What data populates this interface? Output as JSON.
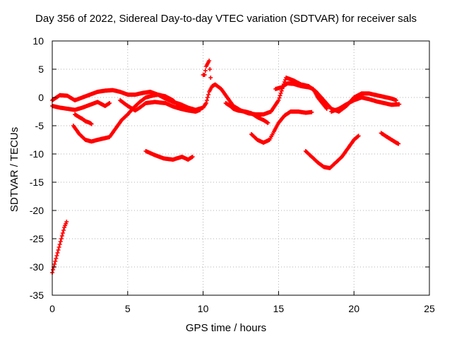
{
  "chart_data": {
    "type": "scatter",
    "title": "Day 356 of 2022, Sidereal Day-to-day VTEC variation (SDTVAR) for receiver sals",
    "xlabel": "GPS time / hours",
    "ylabel": "SDTVAR / TECUs",
    "xlim": [
      0,
      25
    ],
    "ylim": [
      -35,
      10
    ],
    "xticks": [
      0,
      5,
      10,
      15,
      20,
      25
    ],
    "yticks": [
      -35,
      -30,
      -25,
      -20,
      -15,
      -10,
      -5,
      0,
      5,
      10
    ],
    "grid": true,
    "marker": "+",
    "color": "#ff0000",
    "series": [
      {
        "name": "track-1",
        "points": [
          [
            0.0,
            -31.0
          ],
          [
            0.2,
            -29.0
          ],
          [
            0.4,
            -27.0
          ],
          [
            0.6,
            -25.0
          ],
          [
            0.8,
            -23.0
          ],
          [
            0.95,
            -22.0
          ]
        ]
      },
      {
        "name": "track-2",
        "points": [
          [
            0.0,
            -0.5
          ],
          [
            0.5,
            0.4
          ],
          [
            1.0,
            0.3
          ],
          [
            1.5,
            -0.5
          ],
          [
            2.0,
            0.0
          ],
          [
            2.5,
            0.5
          ],
          [
            3.0,
            1.0
          ],
          [
            3.5,
            1.2
          ],
          [
            4.0,
            1.3
          ],
          [
            4.5,
            1.0
          ],
          [
            5.0,
            0.5
          ],
          [
            5.5,
            0.5
          ],
          [
            6.0,
            0.8
          ],
          [
            6.5,
            1.0
          ],
          [
            7.0,
            0.5
          ],
          [
            7.5,
            -0.2
          ],
          [
            8.0,
            -0.8
          ],
          [
            8.5,
            -1.2
          ],
          [
            9.0,
            -1.8
          ],
          [
            9.5,
            -2.2
          ],
          [
            10.0,
            -1.8
          ],
          [
            10.2,
            -1.0
          ],
          [
            10.4,
            1.0
          ],
          [
            10.6,
            2.0
          ],
          [
            10.8,
            2.3
          ],
          [
            11.2,
            1.5
          ],
          [
            11.6,
            0.0
          ],
          [
            12.0,
            -1.5
          ],
          [
            12.5,
            -2.3
          ],
          [
            13.0,
            -2.8
          ],
          [
            13.5,
            -3.0
          ],
          [
            14.0,
            -3.0
          ],
          [
            14.5,
            -2.5
          ],
          [
            15.0,
            -0.5
          ],
          [
            15.3,
            2.0
          ],
          [
            15.5,
            3.5
          ],
          [
            16.0,
            3.0
          ],
          [
            16.5,
            2.3
          ],
          [
            17.0,
            2.0
          ],
          [
            17.5,
            1.0
          ],
          [
            18.0,
            -0.5
          ],
          [
            18.5,
            -2.0
          ],
          [
            19.0,
            -2.5
          ],
          [
            19.5,
            -1.5
          ],
          [
            20.0,
            0.0
          ],
          [
            20.5,
            0.7
          ],
          [
            21.0,
            0.7
          ],
          [
            21.5,
            0.4
          ],
          [
            22.0,
            0.1
          ],
          [
            22.5,
            -0.2
          ],
          [
            22.8,
            -0.5
          ]
        ]
      },
      {
        "name": "track-3",
        "points": [
          [
            0.0,
            -1.5
          ],
          [
            0.5,
            -1.8
          ],
          [
            1.0,
            -2.0
          ],
          [
            1.5,
            -2.2
          ],
          [
            2.0,
            -1.8
          ],
          [
            2.5,
            -1.3
          ],
          [
            3.0,
            -0.8
          ],
          [
            3.5,
            -1.5
          ],
          [
            3.8,
            -1.0
          ]
        ]
      },
      {
        "name": "track-4",
        "points": [
          [
            1.5,
            -3.0
          ],
          [
            1.8,
            -3.5
          ],
          [
            2.0,
            -3.8
          ],
          [
            2.2,
            -4.2
          ],
          [
            2.5,
            -4.5
          ],
          [
            2.6,
            -4.7
          ]
        ]
      },
      {
        "name": "track-5",
        "points": [
          [
            4.5,
            -0.5
          ],
          [
            5.0,
            -1.5
          ],
          [
            5.5,
            -2.3
          ],
          [
            5.8,
            -1.8
          ],
          [
            6.2,
            -1.0
          ],
          [
            6.8,
            -0.8
          ],
          [
            7.5,
            -1.0
          ],
          [
            8.0,
            -1.6
          ],
          [
            8.5,
            -2.0
          ],
          [
            9.0,
            -2.3
          ],
          [
            9.5,
            -2.5
          ],
          [
            9.8,
            -2.2
          ]
        ]
      },
      {
        "name": "track-6",
        "points": [
          [
            1.4,
            -5.0
          ],
          [
            1.8,
            -6.5
          ],
          [
            2.2,
            -7.5
          ],
          [
            2.6,
            -7.8
          ],
          [
            3.0,
            -7.5
          ],
          [
            3.5,
            -7.2
          ],
          [
            3.8,
            -7.0
          ],
          [
            4.2,
            -5.5
          ],
          [
            4.6,
            -4.0
          ],
          [
            5.0,
            -3.0
          ],
          [
            5.4,
            -1.8
          ],
          [
            5.8,
            -0.8
          ],
          [
            6.2,
            0.0
          ],
          [
            6.6,
            0.3
          ],
          [
            7.0,
            0.5
          ],
          [
            7.5,
            0.2
          ],
          [
            8.0,
            -0.5
          ],
          [
            8.4,
            -1.5
          ],
          [
            8.8,
            -2.0
          ]
        ]
      },
      {
        "name": "track-7",
        "points": [
          [
            6.2,
            -9.5
          ],
          [
            6.8,
            -10.2
          ],
          [
            7.4,
            -10.8
          ],
          [
            8.0,
            -11.0
          ],
          [
            8.6,
            -10.5
          ],
          [
            9.0,
            -11.0
          ],
          [
            9.3,
            -10.5
          ]
        ]
      },
      {
        "name": "track-8",
        "points": [
          [
            10.0,
            4.0
          ],
          [
            10.1,
            4.0
          ],
          [
            10.2,
            5.5
          ],
          [
            10.3,
            6.0
          ],
          [
            10.4,
            6.5
          ],
          [
            10.45,
            5.0
          ],
          [
            10.5,
            3.5
          ]
        ]
      },
      {
        "name": "track-9",
        "points": [
          [
            11.5,
            -1.0
          ],
          [
            11.8,
            -1.5
          ],
          [
            12.0,
            -2.0
          ],
          [
            12.3,
            -2.3
          ],
          [
            12.8,
            -2.5
          ],
          [
            13.2,
            -2.8
          ],
          [
            13.6,
            -3.5
          ],
          [
            14.0,
            -4.0
          ],
          [
            14.3,
            -4.5
          ]
        ]
      },
      {
        "name": "track-10",
        "points": [
          [
            13.2,
            -6.5
          ],
          [
            13.6,
            -7.5
          ],
          [
            14.0,
            -8.0
          ],
          [
            14.4,
            -7.5
          ],
          [
            14.7,
            -6.0
          ],
          [
            15.0,
            -4.5
          ],
          [
            15.4,
            -3.2
          ],
          [
            15.8,
            -2.5
          ],
          [
            16.3,
            -2.5
          ],
          [
            16.8,
            -2.7
          ],
          [
            17.2,
            -2.6
          ]
        ]
      },
      {
        "name": "track-11",
        "points": [
          [
            14.8,
            1.5
          ],
          [
            15.2,
            1.8
          ],
          [
            15.6,
            2.5
          ],
          [
            16.0,
            2.4
          ],
          [
            16.5,
            2.0
          ],
          [
            17.0,
            1.8
          ],
          [
            17.3,
            1.5
          ],
          [
            17.6,
            0.0
          ],
          [
            17.9,
            -1.0
          ],
          [
            18.2,
            -2.0
          ]
        ]
      },
      {
        "name": "track-12",
        "points": [
          [
            16.8,
            -9.5
          ],
          [
            17.2,
            -10.5
          ],
          [
            17.6,
            -11.5
          ],
          [
            18.0,
            -12.3
          ],
          [
            18.4,
            -12.5
          ],
          [
            18.8,
            -11.5
          ],
          [
            19.2,
            -10.5
          ],
          [
            19.6,
            -9.0
          ],
          [
            20.0,
            -7.5
          ],
          [
            20.3,
            -6.8
          ]
        ]
      },
      {
        "name": "track-13",
        "points": [
          [
            18.5,
            -2.5
          ],
          [
            19.0,
            -2.0
          ],
          [
            19.5,
            -1.2
          ],
          [
            20.0,
            -0.5
          ],
          [
            20.5,
            0.0
          ],
          [
            21.0,
            -0.3
          ],
          [
            21.5,
            -0.7
          ],
          [
            22.0,
            -1.0
          ],
          [
            22.5,
            -1.3
          ],
          [
            23.0,
            -1.2
          ]
        ]
      },
      {
        "name": "track-14",
        "points": [
          [
            21.8,
            -6.3
          ],
          [
            22.2,
            -7.0
          ],
          [
            22.5,
            -7.5
          ],
          [
            22.8,
            -8.0
          ],
          [
            22.95,
            -8.2
          ]
        ]
      }
    ]
  }
}
